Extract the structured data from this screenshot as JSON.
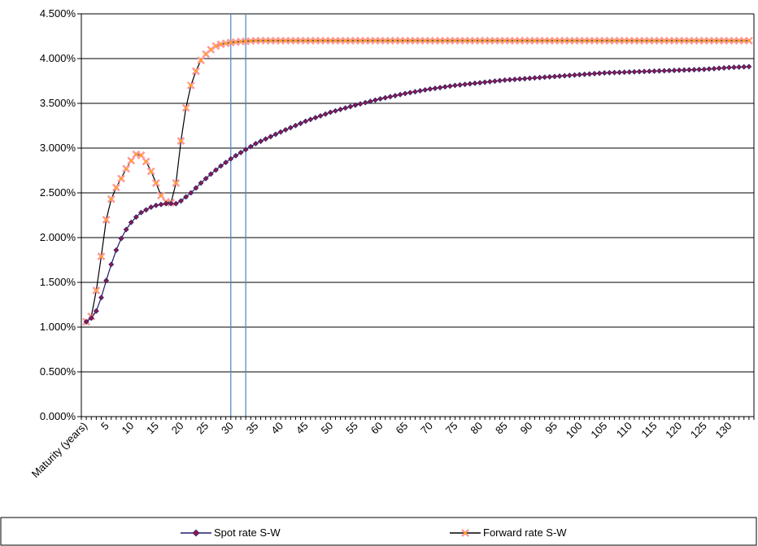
{
  "chart_data": {
    "type": "line",
    "y_tick_labels": [
      "0.000%",
      "0.500%",
      "1.000%",
      "1.500%",
      "2.000%",
      "2.500%",
      "3.000%",
      "3.500%",
      "4.000%",
      "4.500%"
    ],
    "ylim": [
      0.0,
      4.5
    ],
    "y_unit": "%",
    "grid": "horizontal",
    "x_first_label": "Maturity (years)",
    "x_tick_labels": [
      "5",
      "10",
      "15",
      "20",
      "25",
      "30",
      "35",
      "40",
      "45",
      "50",
      "55",
      "60",
      "65",
      "70",
      "75",
      "80",
      "85",
      "90",
      "95",
      "100",
      "105",
      "110",
      "115",
      "120",
      "125",
      "130"
    ],
    "x_tick_values": [
      5,
      10,
      15,
      20,
      25,
      30,
      35,
      40,
      45,
      50,
      55,
      60,
      65,
      70,
      75,
      80,
      85,
      90,
      95,
      100,
      105,
      110,
      115,
      120,
      125,
      130
    ],
    "xlim": [
      0,
      135
    ],
    "vertical_reference_lines": [
      30,
      33
    ],
    "legend_position": "bottom",
    "series": [
      {
        "name": "Spot rate S-W",
        "color": "#1F1A6E",
        "marker": "diamond",
        "marker_color": "#8B1A4A",
        "x": [
          1,
          2,
          3,
          4,
          5,
          6,
          7,
          8,
          9,
          10,
          11,
          12,
          13,
          14,
          15,
          16,
          17,
          18,
          19,
          20,
          22,
          24,
          26,
          28,
          30,
          32,
          35,
          40,
          45,
          50,
          55,
          60,
          65,
          70,
          75,
          80,
          85,
          90,
          95,
          100,
          105,
          110,
          115,
          120,
          125,
          130,
          134
        ],
        "y": [
          1.06,
          1.1,
          1.18,
          1.33,
          1.52,
          1.7,
          1.86,
          1.99,
          2.09,
          2.17,
          2.23,
          2.28,
          2.31,
          2.34,
          2.36,
          2.37,
          2.38,
          2.38,
          2.38,
          2.41,
          2.5,
          2.61,
          2.71,
          2.8,
          2.88,
          2.95,
          3.05,
          3.18,
          3.3,
          3.4,
          3.48,
          3.55,
          3.61,
          3.66,
          3.7,
          3.73,
          3.76,
          3.78,
          3.8,
          3.82,
          3.84,
          3.85,
          3.86,
          3.87,
          3.88,
          3.9,
          3.91
        ]
      },
      {
        "name": "Forward rate S-W",
        "color": "#000000",
        "marker": "x",
        "marker_color": "#FF9999",
        "marker_center_color": "#FFA500",
        "x": [
          1,
          2,
          3,
          4,
          5,
          6,
          7,
          8,
          9,
          10,
          11,
          12,
          13,
          14,
          15,
          16,
          17,
          18,
          19,
          20,
          21,
          22,
          23,
          24,
          25,
          26,
          27,
          28,
          29,
          30,
          32,
          35,
          40,
          50,
          60,
          70,
          80,
          90,
          100,
          110,
          120,
          130,
          134
        ],
        "y": [
          1.06,
          1.12,
          1.41,
          1.79,
          2.2,
          2.43,
          2.56,
          2.66,
          2.77,
          2.86,
          2.93,
          2.92,
          2.85,
          2.74,
          2.61,
          2.47,
          2.4,
          2.39,
          2.61,
          3.08,
          3.45,
          3.7,
          3.86,
          3.98,
          4.05,
          4.1,
          4.14,
          4.16,
          4.17,
          4.18,
          4.19,
          4.2,
          4.2,
          4.2,
          4.2,
          4.2,
          4.2,
          4.2,
          4.2,
          4.2,
          4.2,
          4.2,
          4.2
        ]
      }
    ]
  }
}
